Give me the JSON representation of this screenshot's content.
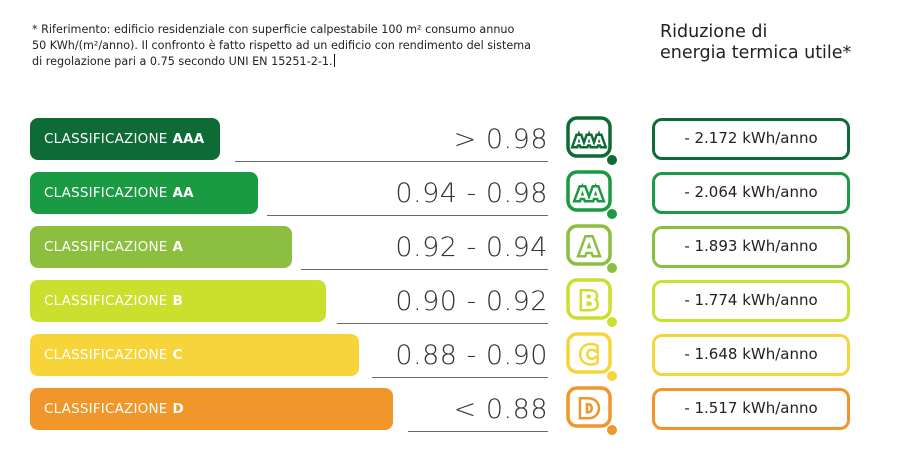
{
  "footnote": {
    "line1": "* Riferimento: edificio residenziale con superficie calpestabile 100 m² consumo annuo",
    "line2": "50 KWh/(m²/anno). Il confronto è fatto rispetto ad un edificio con rendimento del sistema",
    "line3": "di regolazione pari a 0.75 secondo UNI EN 15251-2-1."
  },
  "side_title": {
    "line1": "Riduzione di",
    "line2": "energia termica utile*"
  },
  "classes": [
    {
      "prefix": "CLASSIFICAZIONE",
      "grade": "AAA",
      "range": "> 0.98",
      "badge": "AAA",
      "reduction": "- 2.172 kWh/anno",
      "color": "#0f6b35"
    },
    {
      "prefix": "CLASSIFICAZIONE",
      "grade": "AA",
      "range": "0.94 - 0.98",
      "badge": "AA",
      "reduction": "- 2.064 kWh/anno",
      "color": "#1a9a43"
    },
    {
      "prefix": "CLASSIFICAZIONE",
      "grade": "A",
      "range": "0.92 - 0.94",
      "badge": "A",
      "reduction": "- 1.893 kWh/anno",
      "color": "#8cbf3f"
    },
    {
      "prefix": "CLASSIFICAZIONE",
      "grade": "B",
      "range": "0.90 - 0.92",
      "badge": "B",
      "reduction": "- 1.774 kWh/anno",
      "color": "#cadf2e"
    },
    {
      "prefix": "CLASSIFICAZIONE",
      "grade": "C",
      "range": "0.88 - 0.90",
      "badge": "C",
      "reduction": "- 1.648 kWh/anno",
      "color": "#f7d53a"
    },
    {
      "prefix": "CLASSIFICAZIONE",
      "grade": "D",
      "range": "< 0.88",
      "badge": "D",
      "reduction": "- 1.517 kWh/anno",
      "color": "#f0962a"
    }
  ]
}
